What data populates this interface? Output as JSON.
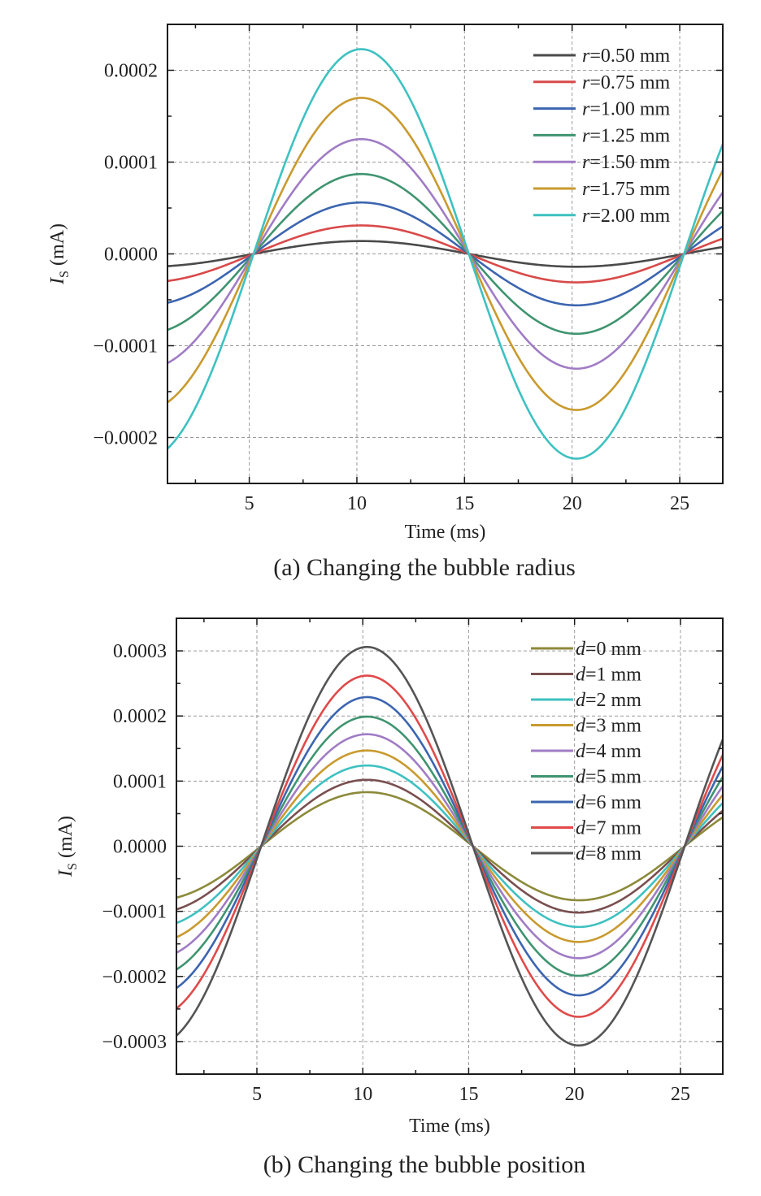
{
  "chart_data": [
    {
      "type": "line",
      "title": "",
      "caption": "(a) Changing the bubble radius",
      "xlabel": "Time (ms)",
      "ylabel_main": "I",
      "ylabel_sub": "S",
      "ylabel_unit": " (mA)",
      "xlim": [
        1.2,
        27
      ],
      "ylim": [
        -0.00025,
        0.00025
      ],
      "x_ticks": [
        5,
        10,
        15,
        20,
        25
      ],
      "x_tick_labels": [
        "5",
        "10",
        "15",
        "20",
        "25"
      ],
      "y_ticks": [
        -0.0002,
        -0.0001,
        0.0,
        0.0001,
        0.0002
      ],
      "y_tick_labels": [
        "−0.0002",
        "−0.0001",
        "0.0000",
        "0.0001",
        "0.0002"
      ],
      "grid": true,
      "legend_position": "top-right",
      "legend_var": "r",
      "period_ms": 20,
      "phase_zero_ms": 5.2,
      "series": [
        {
          "name": "r=0.50 mm",
          "legend_var": "r",
          "legend_rest": "=0.50 mm",
          "amplitude": 1.4e-05,
          "color": "#4a4a4a"
        },
        {
          "name": "r=0.75 mm",
          "legend_var": "r",
          "legend_rest": "=0.75 mm",
          "amplitude": 3.1e-05,
          "color": "#d94a4a"
        },
        {
          "name": "r=1.00 mm",
          "legend_var": "r",
          "legend_rest": "=1.00 mm",
          "amplitude": 5.6e-05,
          "color": "#3c65b0"
        },
        {
          "name": "r=1.25 mm",
          "legend_var": "r",
          "legend_rest": "=1.25 mm",
          "amplitude": 8.7e-05,
          "color": "#3f9470"
        },
        {
          "name": "r=1.50 mm",
          "legend_var": "r",
          "legend_rest": "=1.50 mm",
          "amplitude": 0.000125,
          "color": "#a07cc5"
        },
        {
          "name": "r=1.75 mm",
          "legend_var": "r",
          "legend_rest": "=1.75 mm",
          "amplitude": 0.00017,
          "color": "#c99a2e"
        },
        {
          "name": "r=2.00 mm",
          "legend_var": "r",
          "legend_rest": "=2.00 mm",
          "amplitude": 0.000223,
          "color": "#3ec1c1"
        }
      ]
    },
    {
      "type": "line",
      "title": "",
      "caption": "(b) Changing the bubble position",
      "xlabel": "Time (ms)",
      "ylabel_main": "I",
      "ylabel_sub": "S",
      "ylabel_unit": " (mA)",
      "xlim": [
        1.2,
        27
      ],
      "ylim": [
        -0.00035,
        0.00035
      ],
      "x_ticks": [
        5,
        10,
        15,
        20,
        25
      ],
      "x_tick_labels": [
        "5",
        "10",
        "15",
        "20",
        "25"
      ],
      "y_ticks": [
        -0.0003,
        -0.0002,
        -0.0001,
        0.0,
        0.0001,
        0.0002,
        0.0003
      ],
      "y_tick_labels": [
        "−0.0003",
        "−0.0002",
        "−0.0001",
        "0.0000",
        "0.0001",
        "0.0002",
        "0.0003"
      ],
      "grid": true,
      "legend_position": "top-right",
      "legend_var": "d",
      "period_ms": 20,
      "phase_zero_ms": 5.2,
      "series": [
        {
          "name": "d=0 mm",
          "legend_var": "d",
          "legend_rest": "=0 mm",
          "amplitude": 8.3e-05,
          "color": "#8c8a3a"
        },
        {
          "name": "d=1 mm",
          "legend_var": "d",
          "legend_rest": "=1 mm",
          "amplitude": 0.000102,
          "color": "#7a4f4f"
        },
        {
          "name": "d=2 mm",
          "legend_var": "d",
          "legend_rest": "=2 mm",
          "amplitude": 0.000124,
          "color": "#3ec1c1"
        },
        {
          "name": "d=3 mm",
          "legend_var": "d",
          "legend_rest": "=3 mm",
          "amplitude": 0.000147,
          "color": "#c99a2e"
        },
        {
          "name": "d=4 mm",
          "legend_var": "d",
          "legend_rest": "=4 mm",
          "amplitude": 0.000172,
          "color": "#a07cc5"
        },
        {
          "name": "d=5 mm",
          "legend_var": "d",
          "legend_rest": "=5 mm",
          "amplitude": 0.000199,
          "color": "#3f9470"
        },
        {
          "name": "d=6 mm",
          "legend_var": "d",
          "legend_rest": "=6 mm",
          "amplitude": 0.000229,
          "color": "#3c65b0"
        },
        {
          "name": "d=7 mm",
          "legend_var": "d",
          "legend_rest": "=7 mm",
          "amplitude": 0.000262,
          "color": "#e04a4a"
        },
        {
          "name": "d=8 mm",
          "legend_var": "d",
          "legend_rest": "=8 mm",
          "amplitude": 0.000306,
          "color": "#555555"
        }
      ]
    }
  ]
}
